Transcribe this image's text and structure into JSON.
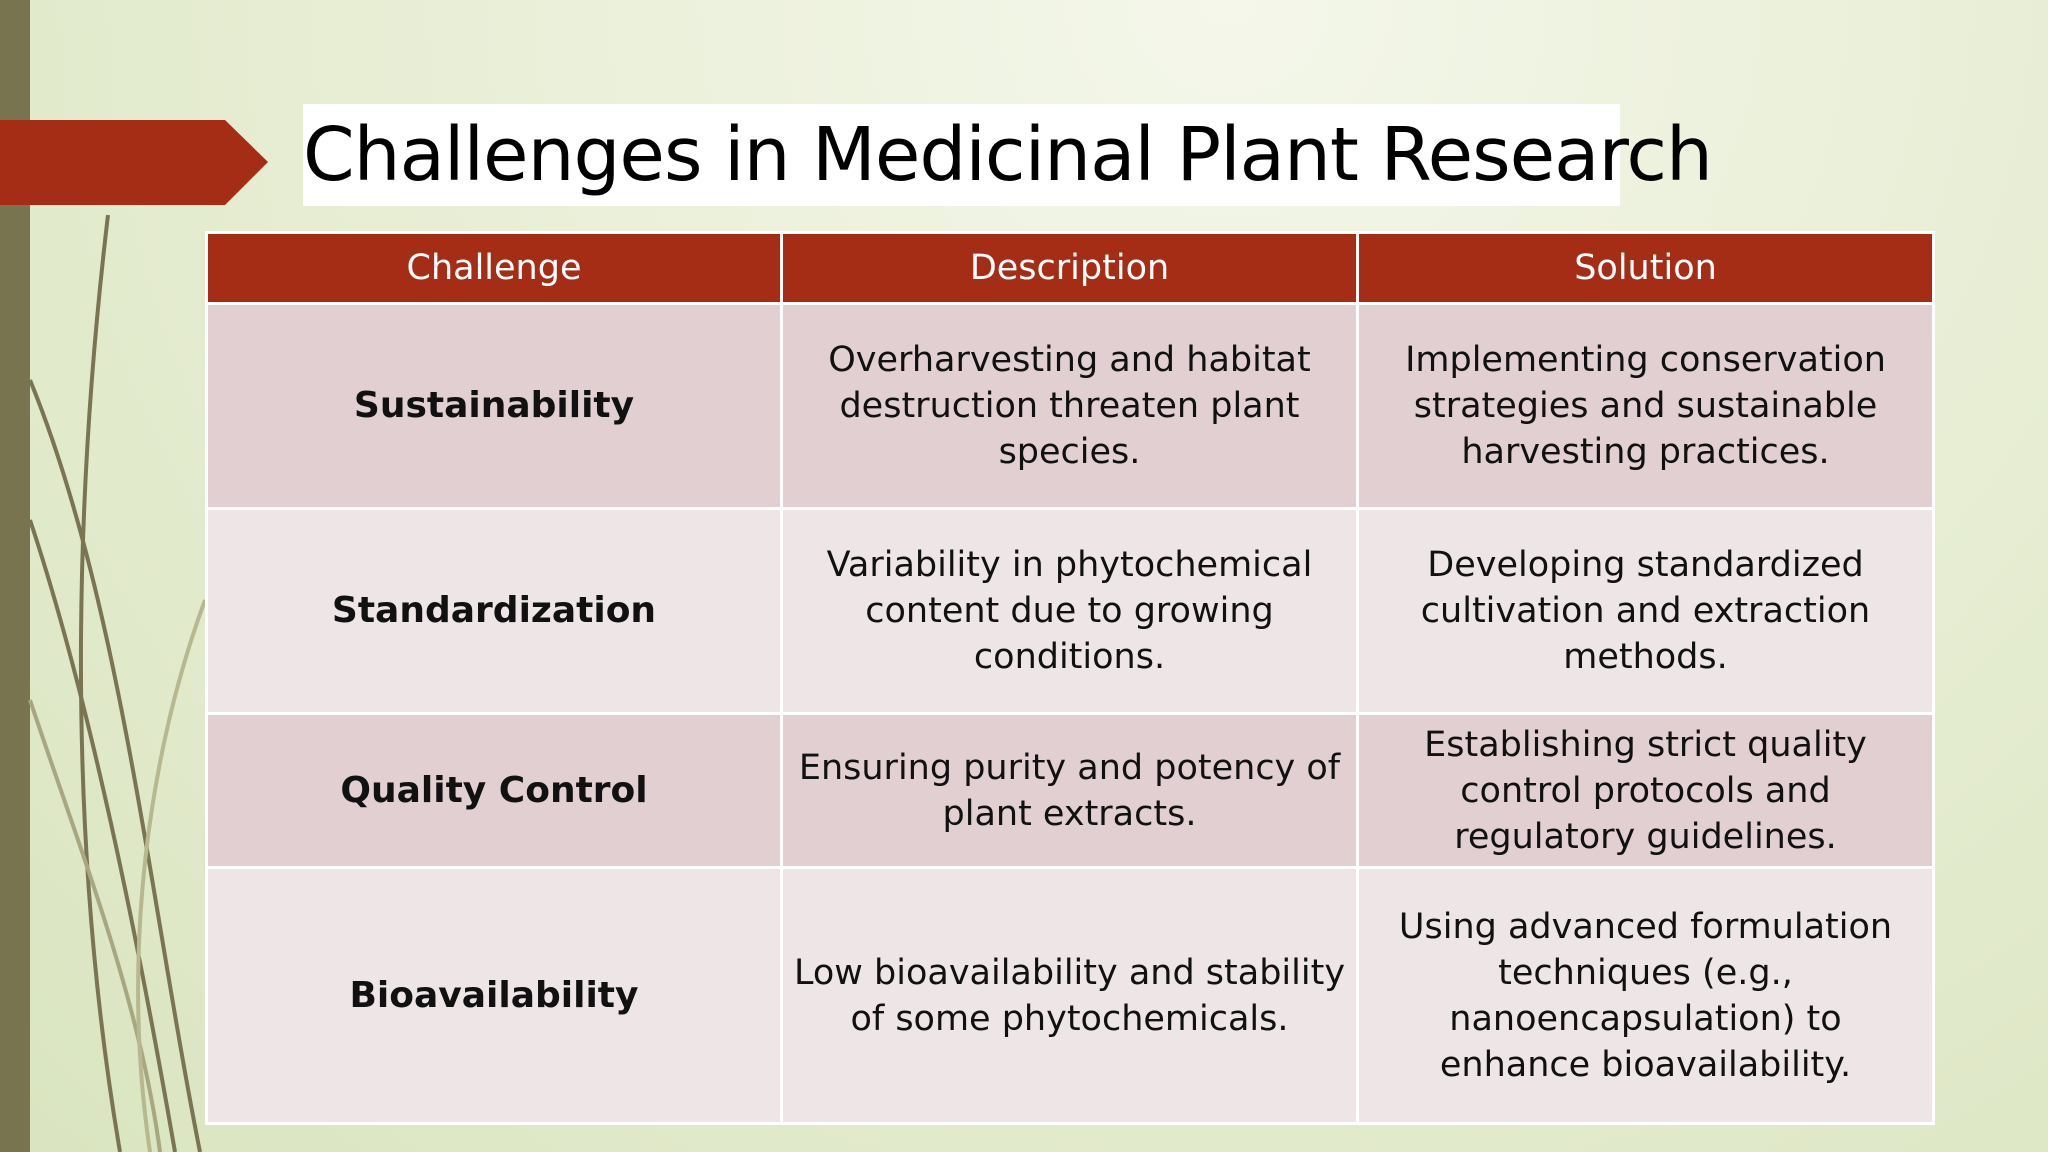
{
  "title": "Challenges in Medicinal Plant Research",
  "table": {
    "headers": [
      "Challenge",
      "Description",
      "Solution"
    ],
    "rows": [
      [
        "Sustainability",
        "Overharvesting and habitat destruction threaten plant species.",
        "Implementing conservation strategies and sustainable harvesting practices."
      ],
      [
        "Standardization",
        "Variability in phytochemical content due to growing conditions.",
        "Developing standardized cultivation and extraction methods."
      ],
      [
        "Quality Control",
        "Ensuring purity and potency of plant extracts.",
        "Establishing strict quality control protocols and regulatory guidelines."
      ],
      [
        "Bioavailability",
        "Low bioavailability and stability of some phytochemicals.",
        "Using advanced formulation techniques (e.g., nanoencapsulation) to enhance bioavailability."
      ]
    ]
  }
}
